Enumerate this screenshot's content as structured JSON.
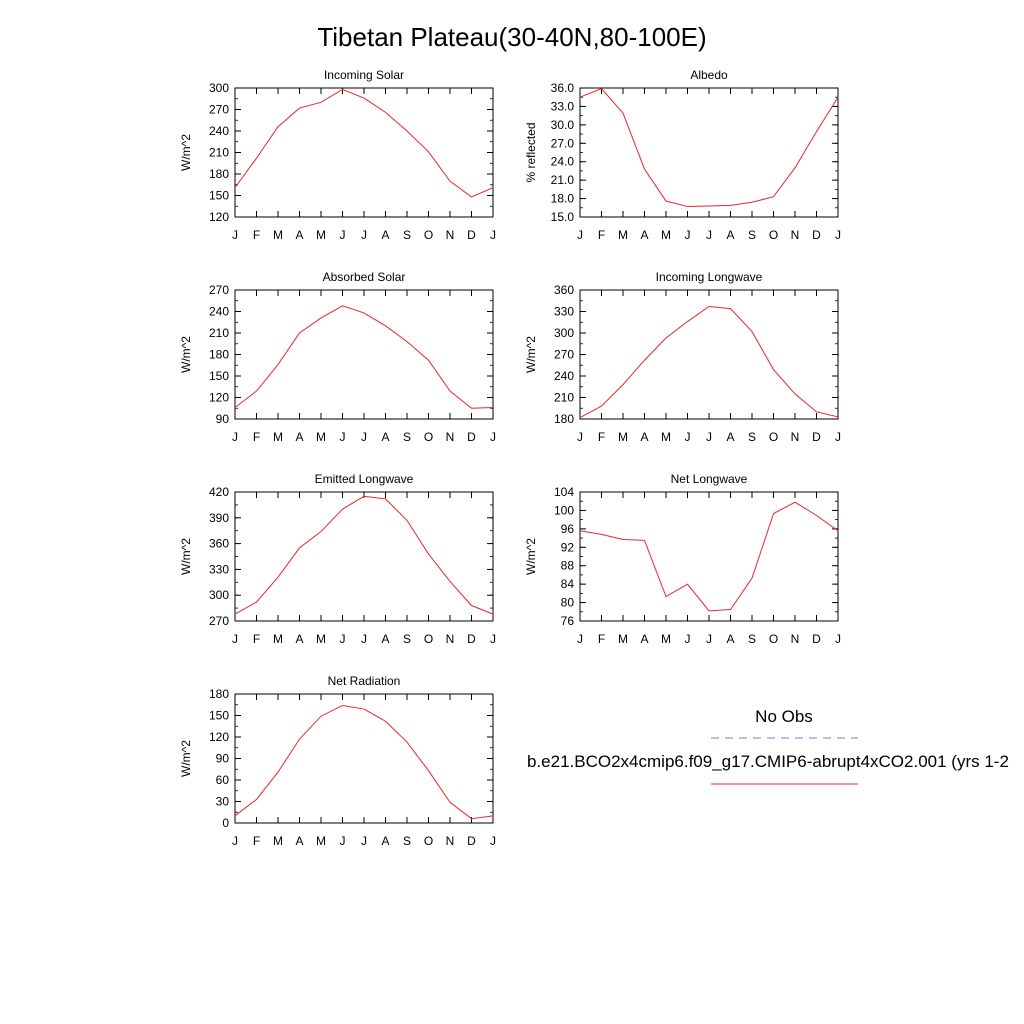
{
  "figure": {
    "title": "Tibetan Plateau(30-40N,80-100E)"
  },
  "legend": {
    "obs_label": "No Obs",
    "obs_color": "#7b7bd6",
    "model_label": "b.e21.BCO2x4cmip6.f09_g17.CMIP6-abrupt4xCO2.001 (yrs 1-2",
    "model_color": "#e8282c"
  },
  "chart_data": [
    {
      "id": "incoming-solar",
      "type": "line",
      "title": "Incoming Solar",
      "ylabel": "W/m^2",
      "xlabel": "",
      "categories": [
        "J",
        "F",
        "M",
        "A",
        "M",
        "J",
        "J",
        "A",
        "S",
        "O",
        "N",
        "D",
        "J"
      ],
      "ylim": [
        120,
        300
      ],
      "yticks": [
        120,
        150,
        180,
        210,
        240,
        270,
        300
      ],
      "ytick_labels": [
        "120",
        "150",
        "180",
        "210",
        "240",
        "270",
        "300"
      ],
      "y_minor": 15,
      "series": [
        {
          "values": [
            161,
            202,
            246,
            272,
            280,
            298,
            286,
            266,
            240,
            211,
            170,
            148,
            161
          ]
        }
      ]
    },
    {
      "id": "albedo",
      "type": "line",
      "title": "Albedo",
      "ylabel": "% reflected",
      "xlabel": "",
      "categories": [
        "J",
        "F",
        "M",
        "A",
        "M",
        "J",
        "J",
        "A",
        "S",
        "O",
        "N",
        "D",
        "J"
      ],
      "ylim": [
        15,
        36
      ],
      "yticks": [
        15,
        18,
        21,
        24,
        27,
        30,
        33,
        36
      ],
      "ytick_labels": [
        "15.0",
        "18.0",
        "21.0",
        "24.0",
        "27.0",
        "30.0",
        "33.0",
        "36.0"
      ],
      "y_minor": 1.5,
      "series": [
        {
          "values": [
            34.5,
            35.9,
            31.9,
            22.8,
            17.6,
            16.7,
            16.8,
            16.9,
            17.4,
            18.3,
            23.0,
            28.9,
            34.5
          ]
        }
      ]
    },
    {
      "id": "absorbed-solar",
      "type": "line",
      "title": "Absorbed Solar",
      "ylabel": "W/m^2",
      "xlabel": "",
      "categories": [
        "J",
        "F",
        "M",
        "A",
        "M",
        "J",
        "J",
        "A",
        "S",
        "O",
        "N",
        "D",
        "J"
      ],
      "ylim": [
        90,
        270
      ],
      "yticks": [
        90,
        120,
        150,
        180,
        210,
        240,
        270
      ],
      "ytick_labels": [
        "90",
        "120",
        "150",
        "180",
        "210",
        "240",
        "270"
      ],
      "y_minor": 15,
      "series": [
        {
          "values": [
            106,
            129,
            166,
            210,
            231,
            248,
            238,
            220,
            198,
            172,
            129,
            105,
            106
          ]
        }
      ]
    },
    {
      "id": "incoming-longwave",
      "type": "line",
      "title": "Incoming Longwave",
      "ylabel": "W/m^2",
      "xlabel": "",
      "categories": [
        "J",
        "F",
        "M",
        "A",
        "M",
        "J",
        "J",
        "A",
        "S",
        "O",
        "N",
        "D",
        "J"
      ],
      "ylim": [
        180,
        360
      ],
      "yticks": [
        180,
        210,
        240,
        270,
        300,
        330,
        360
      ],
      "ytick_labels": [
        "180",
        "210",
        "240",
        "270",
        "300",
        "330",
        "360"
      ],
      "y_minor": 15,
      "series": [
        {
          "values": [
            182,
            198,
            228,
            262,
            293,
            316,
            337,
            334,
            302,
            249,
            215,
            190,
            183
          ]
        }
      ]
    },
    {
      "id": "emitted-longwave",
      "type": "line",
      "title": "Emitted Longwave",
      "ylabel": "W/m^2",
      "xlabel": "",
      "categories": [
        "J",
        "F",
        "M",
        "A",
        "M",
        "J",
        "J",
        "A",
        "S",
        "O",
        "N",
        "D",
        "J"
      ],
      "ylim": [
        270,
        420
      ],
      "yticks": [
        270,
        300,
        330,
        360,
        390,
        420
      ],
      "ytick_labels": [
        "270",
        "300",
        "330",
        "360",
        "390",
        "420"
      ],
      "y_minor": 15,
      "series": [
        {
          "values": [
            278,
            292,
            321,
            355,
            374,
            400,
            415,
            412,
            387,
            348,
            316,
            288,
            278
          ]
        }
      ]
    },
    {
      "id": "net-longwave",
      "type": "line",
      "title": "Net Longwave",
      "ylabel": "W/m^2",
      "xlabel": "",
      "categories": [
        "J",
        "F",
        "M",
        "A",
        "M",
        "J",
        "J",
        "A",
        "S",
        "O",
        "N",
        "D",
        "J"
      ],
      "ylim": [
        76,
        104
      ],
      "yticks": [
        76,
        80,
        84,
        88,
        92,
        96,
        100,
        104
      ],
      "ytick_labels": [
        "76",
        "80",
        "84",
        "88",
        "92",
        "96",
        "100",
        "104"
      ],
      "y_minor": 2,
      "series": [
        {
          "values": [
            95.6,
            94.8,
            93.7,
            93.5,
            81.3,
            84.0,
            78.2,
            78.5,
            85.3,
            99.3,
            101.8,
            98.9,
            95.6
          ]
        }
      ]
    },
    {
      "id": "net-radiation",
      "type": "line",
      "title": "Net Radiation",
      "ylabel": "W/m^2",
      "xlabel": "",
      "categories": [
        "J",
        "F",
        "M",
        "A",
        "M",
        "J",
        "J",
        "A",
        "S",
        "O",
        "N",
        "D",
        "J"
      ],
      "ylim": [
        0,
        180
      ],
      "yticks": [
        0,
        30,
        60,
        90,
        120,
        150,
        180
      ],
      "ytick_labels": [
        "0",
        "30",
        "60",
        "90",
        "120",
        "150",
        "180"
      ],
      "y_minor": 15,
      "series": [
        {
          "values": [
            10,
            33,
            71,
            117,
            149,
            164,
            159,
            142,
            113,
            73,
            29,
            6,
            10
          ]
        }
      ]
    }
  ]
}
